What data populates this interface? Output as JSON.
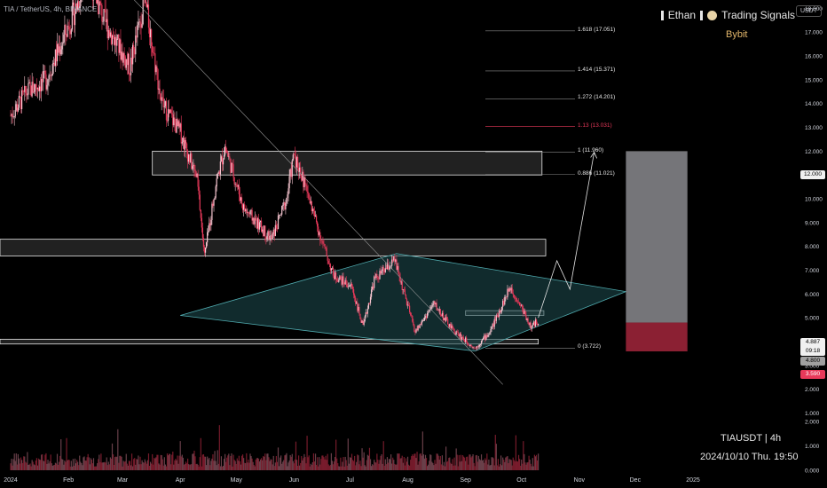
{
  "header": {
    "symbol_text": "TIA / TetherUS, 4h, BINANCE",
    "brand_left": "Ethan",
    "brand_right": "Trading Signals",
    "exchange": "Bybit",
    "currency": "USDT"
  },
  "footer": {
    "timeframe": "TIAUSDT | 4h",
    "timestamp": "2024/10/10 Thu. 19:50"
  },
  "price_tags": {
    "target": "12.000",
    "current_price": "4.887",
    "countdown": "09:18",
    "entry": "4.800",
    "stop": "3.590"
  },
  "colors": {
    "background": "#000000",
    "up_candle": "#f7c6d0",
    "down_candle": "#e8395a",
    "triangle_fill": "#1f4f52",
    "triangle_stroke": "#4fa9ad",
    "target_zone": "#8a8a8e",
    "stop_zone": "#8b2033",
    "fib_text": "#e6e6e6",
    "fib_highlight": "#e8395a"
  },
  "chart_data": {
    "type": "candlestick",
    "title": "TIA / TetherUS, 4h, BINANCE",
    "ylim": [
      0,
      19.8
    ],
    "y_ticks": [
      1,
      2,
      3,
      4,
      5,
      6,
      7,
      8,
      9,
      10,
      11,
      12,
      13,
      14,
      15,
      16,
      17,
      18
    ],
    "y_tick_labels": [
      "1.000",
      "2.000",
      "3.000",
      "4.000",
      "5.000",
      "6.000",
      "7.000",
      "8.000",
      "9.000",
      "10.000",
      "11.000",
      "12.000",
      "13.000",
      "14.000",
      "15.000",
      "16.000",
      "17.000",
      "18.000"
    ],
    "x_labels": [
      "2024",
      "Feb",
      "Mar",
      "Apr",
      "May",
      "Jun",
      "Jul",
      "Aug",
      "Sep",
      "Oct",
      "Nov",
      "Dec",
      "2025"
    ],
    "x_label_dates": [
      "2024-01-01",
      "2024-02-01",
      "2024-03-01",
      "2024-04-01",
      "2024-05-01",
      "2024-06-01",
      "2024-07-01",
      "2024-08-01",
      "2024-09-01",
      "2024-10-01",
      "2024-11-01",
      "2024-12-01",
      "2025-01-01"
    ],
    "price_path": [
      {
        "date": "2024-01-01",
        "price": 13.5
      },
      {
        "date": "2024-01-10",
        "price": 14.5
      },
      {
        "date": "2024-01-20",
        "price": 15.0
      },
      {
        "date": "2024-02-05",
        "price": 18.0
      },
      {
        "date": "2024-02-11",
        "price": 19.6
      },
      {
        "date": "2024-02-20",
        "price": 17.5
      },
      {
        "date": "2024-03-05",
        "price": 15.5
      },
      {
        "date": "2024-03-13",
        "price": 18.4
      },
      {
        "date": "2024-03-22",
        "price": 14.0
      },
      {
        "date": "2024-04-01",
        "price": 12.8
      },
      {
        "date": "2024-04-10",
        "price": 10.8
      },
      {
        "date": "2024-04-14",
        "price": 7.6
      },
      {
        "date": "2024-04-20",
        "price": 10.6
      },
      {
        "date": "2024-04-25",
        "price": 12.2
      },
      {
        "date": "2024-05-05",
        "price": 9.6
      },
      {
        "date": "2024-05-20",
        "price": 8.3
      },
      {
        "date": "2024-05-28",
        "price": 10.0
      },
      {
        "date": "2024-06-01",
        "price": 11.9
      },
      {
        "date": "2024-06-08",
        "price": 10.3
      },
      {
        "date": "2024-06-16",
        "price": 8.2
      },
      {
        "date": "2024-06-22",
        "price": 6.8
      },
      {
        "date": "2024-07-02",
        "price": 6.3
      },
      {
        "date": "2024-07-08",
        "price": 4.6
      },
      {
        "date": "2024-07-14",
        "price": 6.6
      },
      {
        "date": "2024-07-25",
        "price": 7.4
      },
      {
        "date": "2024-08-05",
        "price": 4.4
      },
      {
        "date": "2024-08-15",
        "price": 5.6
      },
      {
        "date": "2024-08-25",
        "price": 4.5
      },
      {
        "date": "2024-09-06",
        "price": 3.72
      },
      {
        "date": "2024-09-14",
        "price": 4.4
      },
      {
        "date": "2024-09-25",
        "price": 6.3
      },
      {
        "date": "2024-10-02",
        "price": 5.3
      },
      {
        "date": "2024-10-06",
        "price": 4.6
      },
      {
        "date": "2024-10-10",
        "price": 4.887
      }
    ],
    "volume_ylim": [
      0,
      3.2
    ],
    "volume_ticks": [
      0,
      1,
      2
    ],
    "volume_tick_labels": [
      "0.000",
      "1.000",
      "2.000"
    ],
    "fib_levels": [
      {
        "ratio": "1.618",
        "price": 17.051,
        "label": "1.618 (17.051)",
        "highlight": false
      },
      {
        "ratio": "1.414",
        "price": 15.371,
        "label": "1.414 (15.371)",
        "highlight": false
      },
      {
        "ratio": "1.272",
        "price": 14.201,
        "label": "1.272 (14.201)",
        "highlight": false
      },
      {
        "ratio": "1.13",
        "price": 13.031,
        "label": "1.13 (13.031)",
        "highlight": true
      },
      {
        "ratio": "1",
        "price": 11.96,
        "label": "1 (11.960)",
        "highlight": false
      },
      {
        "ratio": "0.886",
        "price": 11.021,
        "label": "0.886 (11.021)",
        "highlight": false
      },
      {
        "ratio": "0",
        "price": 3.722,
        "label": "0 (3.722)",
        "highlight": false
      }
    ],
    "zones": [
      {
        "type": "resistance",
        "start": "2024-03-17",
        "end": "2024-10-12",
        "low": 11.0,
        "high": 12.0
      },
      {
        "type": "resistance",
        "start": "2024-01-01",
        "end": "2024-10-14",
        "low": 7.6,
        "high": 8.3
      },
      {
        "type": "support",
        "start": "2024-01-01",
        "end": "2024-10-10",
        "low": 3.9,
        "high": 4.1
      },
      {
        "type": "pivot",
        "start": "2024-09-01",
        "end": "2024-10-13",
        "low": 5.1,
        "high": 5.3
      }
    ],
    "triangle": [
      {
        "date": "2024-04-01",
        "price": 5.1
      },
      {
        "date": "2024-07-26",
        "price": 7.7
      },
      {
        "date": "2024-11-26",
        "price": 6.1
      },
      {
        "date": "2024-09-06",
        "price": 3.6
      }
    ],
    "trendline": [
      {
        "date": "2024-02-21",
        "price": 19.6
      },
      {
        "date": "2024-09-21",
        "price": 2.2
      }
    ],
    "projection": [
      {
        "date": "2024-10-10",
        "price": 5.0
      },
      {
        "date": "2024-10-20",
        "price": 7.4
      },
      {
        "date": "2024-10-27",
        "price": 6.2
      },
      {
        "date": "2024-11-09",
        "price": 11.96
      }
    ],
    "position": {
      "start": "2024-11-26",
      "end": "2024-12-29",
      "entry": 4.8,
      "target": 12.0,
      "stop": 3.59
    }
  }
}
